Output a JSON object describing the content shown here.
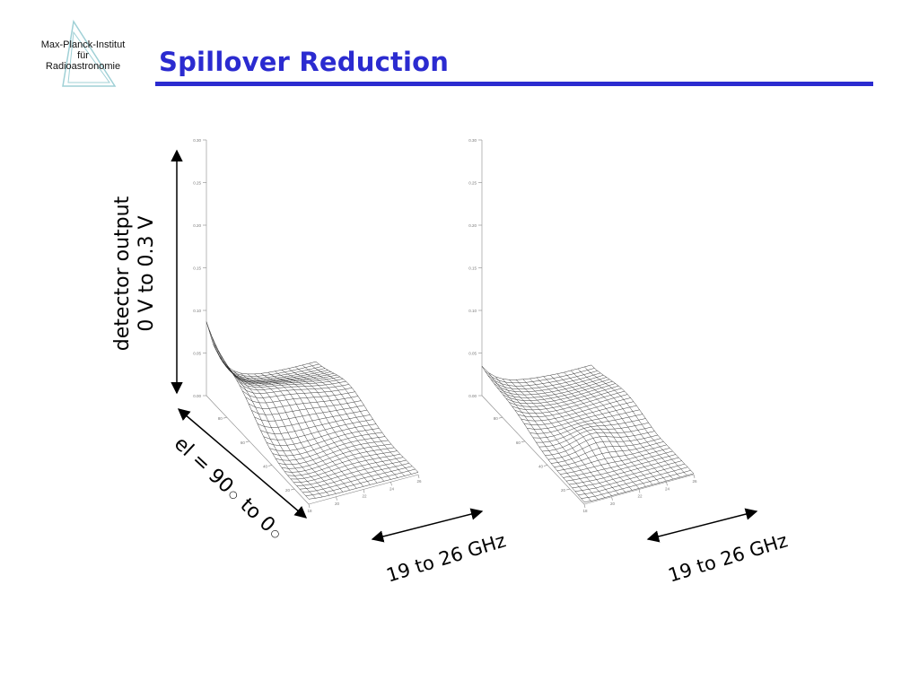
{
  "header": {
    "title": "Spillover Reduction",
    "accent_color": "#2b2bd0"
  },
  "logo": {
    "line1": "Max-Planck-Institut",
    "line2": "für",
    "line3": "Radioastronomie",
    "icon": "triangle-logo-icon"
  },
  "labels": {
    "detector_line1": "detector output",
    "detector_line2": "0 V to 0.3 V",
    "elevation_prefix": "el = 90",
    "elevation_mid": "to 0",
    "degree_symbol": "○",
    "freq_left": "19 to 26 GHz",
    "freq_right": "19 to 26 GHz"
  },
  "plots": {
    "left": {
      "z_ticks": [
        "0.30",
        "0.25",
        "0.20",
        "0.15",
        "0.10",
        "0.05",
        "0.00"
      ],
      "y_ticks": [
        "80",
        "60",
        "40",
        "20"
      ],
      "x_ticks": [
        "18",
        "20",
        "22",
        "24",
        "26"
      ]
    },
    "right": {
      "z_ticks": [
        "0.30",
        "0.25",
        "0.20",
        "0.15",
        "0.10",
        "0.05",
        "0.00"
      ],
      "y_ticks": [
        "80",
        "60",
        "40",
        "20"
      ],
      "x_ticks": [
        "18",
        "20",
        "22",
        "24",
        "26"
      ]
    }
  }
}
